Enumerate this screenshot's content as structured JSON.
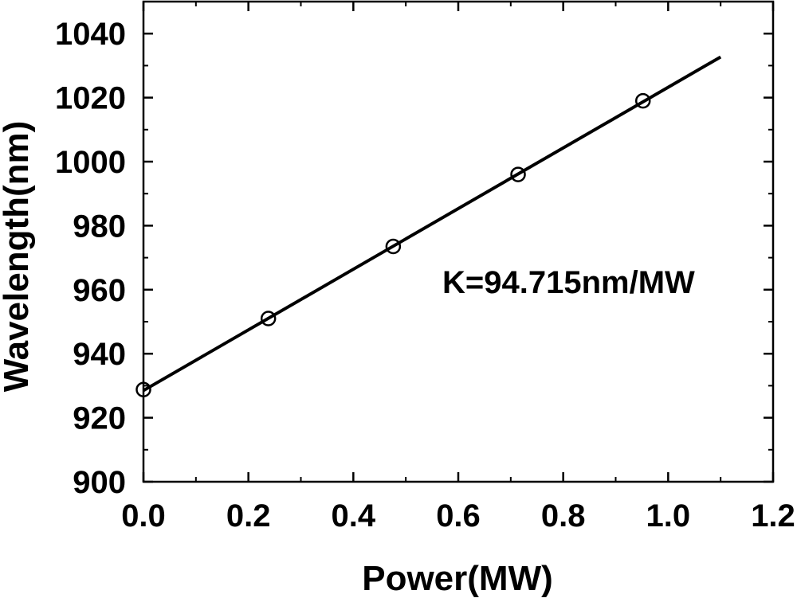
{
  "chart_data": {
    "type": "scatter",
    "xlabel": "Power(MW)",
    "ylabel": "Wavelength(nm)",
    "xlim": [
      0.0,
      1.2
    ],
    "ylim": [
      900,
      1050
    ],
    "x_ticks": [
      "0.0",
      "0.2",
      "0.4",
      "0.6",
      "0.8",
      "1.0",
      "1.2"
    ],
    "y_ticks": [
      "900",
      "920",
      "940",
      "960",
      "980",
      "1000",
      "1020",
      "1040"
    ],
    "series": [
      {
        "marker": "open-circle",
        "x": [
          0.0,
          0.238,
          0.476,
          0.714,
          0.952
        ],
        "y": [
          928.8,
          951.0,
          973.5,
          996.0,
          1019.0
        ]
      }
    ],
    "fit_line": {
      "x": [
        0.0,
        1.1
      ],
      "y": [
        928.5,
        1032.7
      ]
    },
    "annotation": "K=94.715nm/MW",
    "grid": false,
    "legend": "none"
  }
}
